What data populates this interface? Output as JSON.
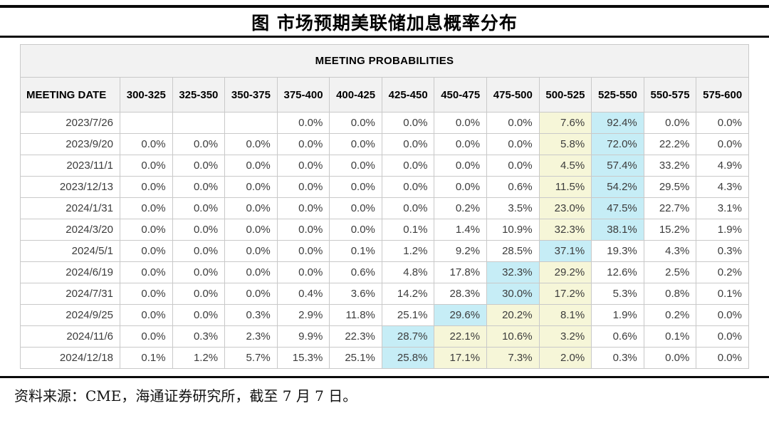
{
  "title": "图  市场预期美联储加息概率分布",
  "footer": "资料来源：CME，海通证券研究所，截至 7 月 7 日。",
  "colors": {
    "highlight_yellow": "#f6f6d8",
    "highlight_cyan": "#c6edf6",
    "header_bg": "#f2f2f2",
    "border": "#c9c9c9"
  },
  "chart_data": {
    "type": "table",
    "title": "MEETING PROBABILITIES",
    "date_header": "MEETING DATE",
    "range_headers": [
      "300-325",
      "325-350",
      "350-375",
      "375-400",
      "400-425",
      "425-450",
      "450-475",
      "475-500",
      "500-525",
      "525-550",
      "550-575",
      "575-600"
    ],
    "highlight_legend": {
      "c": "cyan highlight (modal probability)",
      "y": "yellow highlight",
      "": "no highlight"
    },
    "rows": [
      {
        "date": "2023/7/26",
        "values": [
          "",
          "",
          "",
          "0.0%",
          "0.0%",
          "0.0%",
          "0.0%",
          "0.0%",
          "7.6%",
          "92.4%",
          "0.0%",
          "0.0%"
        ],
        "marks": [
          "",
          "",
          "",
          "",
          "",
          "",
          "",
          "",
          "y",
          "c",
          "",
          ""
        ]
      },
      {
        "date": "2023/9/20",
        "values": [
          "0.0%",
          "0.0%",
          "0.0%",
          "0.0%",
          "0.0%",
          "0.0%",
          "0.0%",
          "0.0%",
          "5.8%",
          "72.0%",
          "22.2%",
          "0.0%"
        ],
        "marks": [
          "",
          "",
          "",
          "",
          "",
          "",
          "",
          "",
          "y",
          "c",
          "",
          ""
        ]
      },
      {
        "date": "2023/11/1",
        "values": [
          "0.0%",
          "0.0%",
          "0.0%",
          "0.0%",
          "0.0%",
          "0.0%",
          "0.0%",
          "0.0%",
          "4.5%",
          "57.4%",
          "33.2%",
          "4.9%"
        ],
        "marks": [
          "",
          "",
          "",
          "",
          "",
          "",
          "",
          "",
          "y",
          "c",
          "",
          ""
        ]
      },
      {
        "date": "2023/12/13",
        "values": [
          "0.0%",
          "0.0%",
          "0.0%",
          "0.0%",
          "0.0%",
          "0.0%",
          "0.0%",
          "0.6%",
          "11.5%",
          "54.2%",
          "29.5%",
          "4.3%"
        ],
        "marks": [
          "",
          "",
          "",
          "",
          "",
          "",
          "",
          "",
          "y",
          "c",
          "",
          ""
        ]
      },
      {
        "date": "2024/1/31",
        "values": [
          "0.0%",
          "0.0%",
          "0.0%",
          "0.0%",
          "0.0%",
          "0.0%",
          "0.2%",
          "3.5%",
          "23.0%",
          "47.5%",
          "22.7%",
          "3.1%"
        ],
        "marks": [
          "",
          "",
          "",
          "",
          "",
          "",
          "",
          "",
          "y",
          "c",
          "",
          ""
        ]
      },
      {
        "date": "2024/3/20",
        "values": [
          "0.0%",
          "0.0%",
          "0.0%",
          "0.0%",
          "0.0%",
          "0.1%",
          "1.4%",
          "10.9%",
          "32.3%",
          "38.1%",
          "15.2%",
          "1.9%"
        ],
        "marks": [
          "",
          "",
          "",
          "",
          "",
          "",
          "",
          "",
          "y",
          "c",
          "",
          ""
        ]
      },
      {
        "date": "2024/5/1",
        "values": [
          "0.0%",
          "0.0%",
          "0.0%",
          "0.0%",
          "0.1%",
          "1.2%",
          "9.2%",
          "28.5%",
          "37.1%",
          "19.3%",
          "4.3%",
          "0.3%"
        ],
        "marks": [
          "",
          "",
          "",
          "",
          "",
          "",
          "",
          "",
          "c",
          "",
          "",
          ""
        ]
      },
      {
        "date": "2024/6/19",
        "values": [
          "0.0%",
          "0.0%",
          "0.0%",
          "0.0%",
          "0.6%",
          "4.8%",
          "17.8%",
          "32.3%",
          "29.2%",
          "12.6%",
          "2.5%",
          "0.2%"
        ],
        "marks": [
          "",
          "",
          "",
          "",
          "",
          "",
          "",
          "c",
          "y",
          "",
          "",
          ""
        ]
      },
      {
        "date": "2024/7/31",
        "values": [
          "0.0%",
          "0.0%",
          "0.0%",
          "0.4%",
          "3.6%",
          "14.2%",
          "28.3%",
          "30.0%",
          "17.2%",
          "5.3%",
          "0.8%",
          "0.1%"
        ],
        "marks": [
          "",
          "",
          "",
          "",
          "",
          "",
          "",
          "c",
          "y",
          "",
          "",
          ""
        ]
      },
      {
        "date": "2024/9/25",
        "values": [
          "0.0%",
          "0.0%",
          "0.3%",
          "2.9%",
          "11.8%",
          "25.1%",
          "29.6%",
          "20.2%",
          "8.1%",
          "1.9%",
          "0.2%",
          "0.0%"
        ],
        "marks": [
          "",
          "",
          "",
          "",
          "",
          "",
          "c",
          "y",
          "y",
          "",
          "",
          ""
        ]
      },
      {
        "date": "2024/11/6",
        "values": [
          "0.0%",
          "0.3%",
          "2.3%",
          "9.9%",
          "22.3%",
          "28.7%",
          "22.1%",
          "10.6%",
          "3.2%",
          "0.6%",
          "0.1%",
          "0.0%"
        ],
        "marks": [
          "",
          "",
          "",
          "",
          "",
          "c",
          "y",
          "y",
          "y",
          "",
          "",
          ""
        ]
      },
      {
        "date": "2024/12/18",
        "values": [
          "0.1%",
          "1.2%",
          "5.7%",
          "15.3%",
          "25.1%",
          "25.8%",
          "17.1%",
          "7.3%",
          "2.0%",
          "0.3%",
          "0.0%",
          "0.0%"
        ],
        "marks": [
          "",
          "",
          "",
          "",
          "",
          "c",
          "y",
          "y",
          "y",
          "",
          "",
          ""
        ]
      }
    ]
  }
}
